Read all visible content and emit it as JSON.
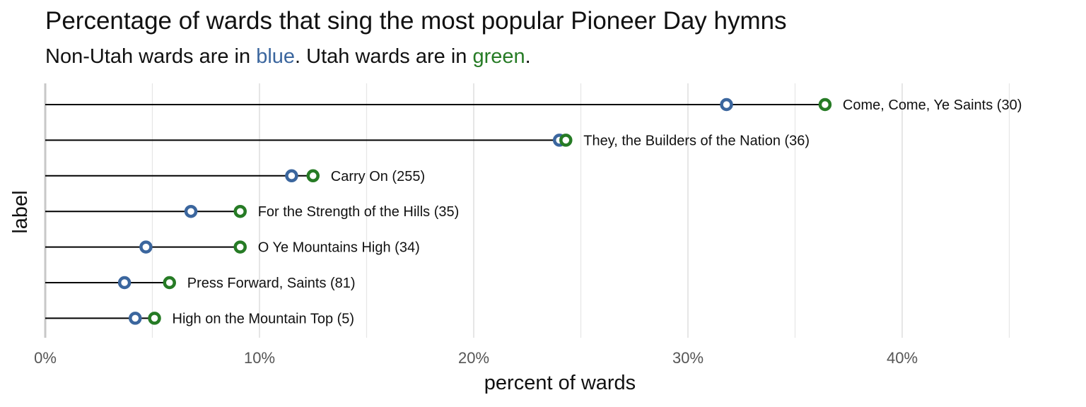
{
  "title": "Percentage of wards that sing the most popular Pioneer Day hymns",
  "subtitle": {
    "part1": "Non-Utah wards are in ",
    "blue_word": "blue",
    "part2": ". Utah wards are in ",
    "green_word": "green",
    "part3": "."
  },
  "colors": {
    "non_utah": "#3b669e",
    "utah": "#267b25",
    "segment": "#000000",
    "grid": "#e6e6e6"
  },
  "chart_data": {
    "type": "dumbbell",
    "title": "Percentage of wards that sing the most popular Pioneer Day hymns",
    "xlabel": "percent of wards",
    "ylabel": "label",
    "xlim": [
      0,
      46
    ],
    "x_ticks": [
      0,
      10,
      20,
      30,
      40
    ],
    "x_tick_labels": [
      "0%",
      "10%",
      "20%",
      "30%",
      "40%"
    ],
    "grid": true,
    "series": [
      {
        "name": "Non-Utah",
        "color": "blue"
      },
      {
        "name": "Utah",
        "color": "green"
      }
    ],
    "rows": [
      {
        "label": "Come, Come, Ye Saints (30)",
        "non_utah": 31.8,
        "utah": 36.4
      },
      {
        "label": "They, the Builders of the Nation (36)",
        "non_utah": 24.0,
        "utah": 24.3
      },
      {
        "label": "Carry On (255)",
        "non_utah": 11.5,
        "utah": 12.5
      },
      {
        "label": "For the Strength of the Hills (35)",
        "non_utah": 6.8,
        "utah": 9.1
      },
      {
        "label": "O Ye Mountains High (34)",
        "non_utah": 4.7,
        "utah": 9.1
      },
      {
        "label": "Press Forward, Saints (81)",
        "non_utah": 3.7,
        "utah": 5.8
      },
      {
        "label": "High on the Mountain Top (5)",
        "non_utah": 4.2,
        "utah": 5.1
      }
    ]
  }
}
